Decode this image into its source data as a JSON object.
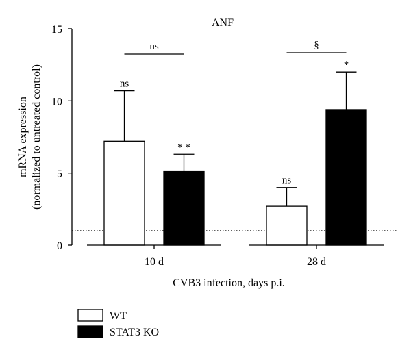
{
  "chart_data": {
    "type": "bar",
    "title": "ANF",
    "xlabel": "CVB3 infection, days p.i.",
    "ylabel_line1": "mRNA expression",
    "ylabel_line2": "(normalized to untreated control)",
    "ylim": [
      0,
      15
    ],
    "yticks": [
      "0",
      "5",
      "10",
      "15"
    ],
    "categories": [
      "10 d",
      "28 d"
    ],
    "series": [
      {
        "name": "WT",
        "values": [
          7.2,
          2.7
        ],
        "errors": [
          3.5,
          1.3
        ],
        "fill": "#ffffff",
        "stroke": "#000000"
      },
      {
        "name": "STAT3 KO",
        "values": [
          5.1,
          9.4
        ],
        "errors": [
          1.2,
          2.6
        ],
        "fill": "#000000",
        "stroke": "#000000"
      }
    ],
    "bar_annotations": [
      [
        "ns",
        "ns"
      ],
      [
        "* *",
        "*"
      ]
    ],
    "group_annotations": [
      "ns",
      "§"
    ],
    "reference_line": {
      "value": 1,
      "style": "dotted"
    },
    "legend": {
      "position": "bottom-left"
    },
    "grid": false
  }
}
